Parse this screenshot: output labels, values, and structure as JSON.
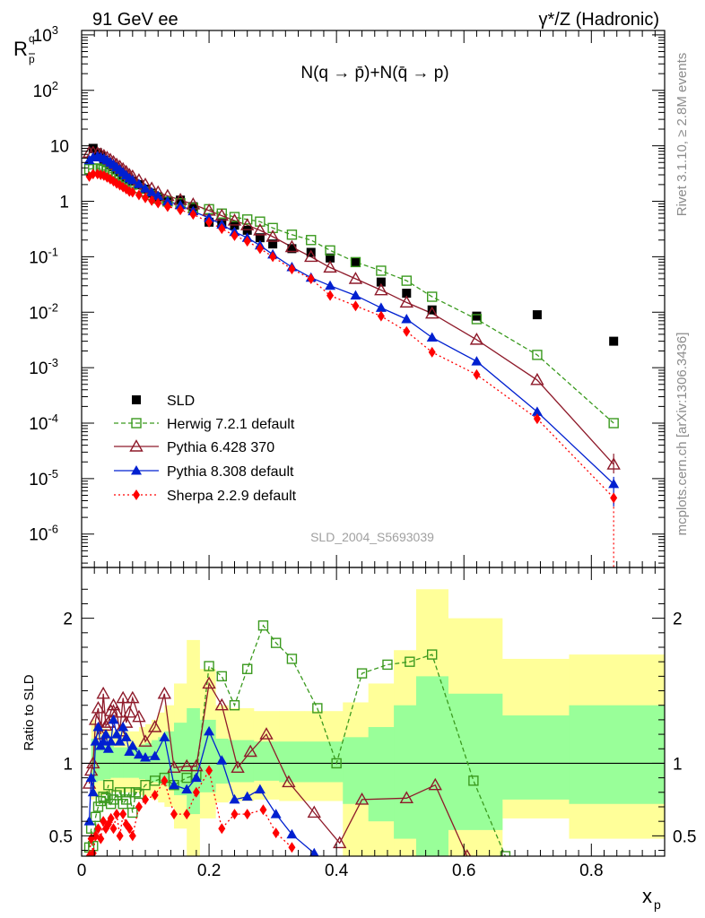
{
  "header": {
    "left": "91 GeV ee",
    "right": "γ*/Z (Hadronic)"
  },
  "side_text": {
    "rivet": "Rivet 3.1.10, ≥ 2.8M events",
    "mcplots": "mcplots.cern.ch [arXiv:1306.3436]"
  },
  "watermark": "SLD_2004_S5693039",
  "colors": {
    "SLD": "#000000",
    "Herwig": "#3b9a1f",
    "Pythia6": "#8e1a2a",
    "Pythia8": "#0020d0",
    "Sherpa": "#ff0000",
    "band_outer": "#ffff99",
    "band_inner": "#99ff99"
  },
  "chart_data": [
    {
      "type": "scatter",
      "title": "N(q → p̄)+N(q̄ → p)",
      "ylabel": "R_p^q",
      "yscale": "log",
      "xlim": [
        0,
        0.915
      ],
      "ylim": [
        2.5e-07,
        1200
      ],
      "y_ticks": [
        "10^3",
        "10^2",
        "10",
        "1",
        "10^-1",
        "10^-2",
        "10^-3",
        "10^-4",
        "10^-5",
        "10^-6"
      ],
      "x_ticks": [
        "0",
        "0.2",
        "0.4",
        "0.6",
        "0.8"
      ],
      "legend_position": "bottom-left",
      "series": [
        {
          "name": "SLD",
          "style": "marker",
          "x": [
            0.018,
            0.025,
            0.03,
            0.035,
            0.04,
            0.045,
            0.05,
            0.055,
            0.06,
            0.065,
            0.07,
            0.075,
            0.08,
            0.09,
            0.1,
            0.11,
            0.12,
            0.135,
            0.155,
            0.175,
            0.2,
            0.22,
            0.24,
            0.26,
            0.28,
            0.3,
            0.33,
            0.36,
            0.39,
            0.43,
            0.47,
            0.51,
            0.55,
            0.62,
            0.715,
            0.835
          ],
          "y": [
            9.0,
            7.5,
            6.5,
            5.5,
            5.0,
            4.5,
            4.2,
            3.8,
            3.4,
            3.0,
            2.7,
            2.5,
            2.3,
            2.0,
            1.65,
            1.4,
            1.2,
            1.0,
            1.05,
            0.8,
            0.42,
            0.4,
            0.37,
            0.3,
            0.22,
            0.17,
            0.14,
            0.12,
            0.095,
            0.08,
            0.035,
            0.022,
            0.011,
            0.0085,
            0.009,
            0.003
          ]
        },
        {
          "name": "Herwig 7.2.1 default",
          "style": "dashed-open-square",
          "x": [
            0.012,
            0.018,
            0.025,
            0.03,
            0.035,
            0.04,
            0.045,
            0.05,
            0.055,
            0.06,
            0.065,
            0.07,
            0.075,
            0.08,
            0.09,
            0.1,
            0.11,
            0.12,
            0.135,
            0.155,
            0.175,
            0.2,
            0.22,
            0.24,
            0.26,
            0.28,
            0.3,
            0.33,
            0.36,
            0.39,
            0.43,
            0.47,
            0.51,
            0.55,
            0.62,
            0.715,
            0.835
          ],
          "y": [
            3.8,
            3.9,
            3.9,
            3.8,
            3.7,
            3.5,
            3.3,
            3.1,
            2.9,
            2.7,
            2.5,
            2.3,
            2.15,
            2.0,
            1.72,
            1.5,
            1.3,
            1.12,
            0.99,
            0.92,
            0.76,
            0.72,
            0.6,
            0.52,
            0.47,
            0.43,
            0.33,
            0.25,
            0.2,
            0.13,
            0.08,
            0.056,
            0.037,
            0.019,
            0.0075,
            0.0017,
            0.0001
          ]
        },
        {
          "name": "Pythia 6.428 370",
          "style": "solid-open-triangle",
          "x": [
            0.012,
            0.018,
            0.025,
            0.03,
            0.035,
            0.04,
            0.045,
            0.05,
            0.055,
            0.06,
            0.065,
            0.07,
            0.075,
            0.08,
            0.09,
            0.1,
            0.11,
            0.12,
            0.135,
            0.155,
            0.175,
            0.2,
            0.22,
            0.24,
            0.26,
            0.28,
            0.3,
            0.33,
            0.36,
            0.39,
            0.43,
            0.47,
            0.51,
            0.55,
            0.62,
            0.715,
            0.835
          ],
          "y": [
            7.5,
            7.6,
            7.3,
            7.0,
            6.6,
            6.1,
            5.6,
            5.1,
            4.6,
            4.2,
            3.8,
            3.4,
            3.0,
            2.8,
            2.4,
            2.0,
            1.7,
            1.45,
            1.25,
            1.06,
            0.88,
            0.68,
            0.55,
            0.45,
            0.37,
            0.3,
            0.23,
            0.15,
            0.1,
            0.064,
            0.04,
            0.025,
            0.015,
            0.0095,
            0.0032,
            0.0006,
            1.8e-05
          ]
        },
        {
          "name": "Pythia 8.308 default",
          "style": "solid-filled-triangle",
          "x": [
            0.012,
            0.018,
            0.025,
            0.03,
            0.035,
            0.04,
            0.045,
            0.05,
            0.055,
            0.06,
            0.065,
            0.07,
            0.075,
            0.08,
            0.09,
            0.1,
            0.11,
            0.12,
            0.135,
            0.155,
            0.175,
            0.2,
            0.22,
            0.24,
            0.26,
            0.28,
            0.3,
            0.33,
            0.36,
            0.39,
            0.43,
            0.47,
            0.51,
            0.55,
            0.62,
            0.715,
            0.835
          ],
          "y": [
            5.5,
            6.2,
            6.5,
            6.2,
            5.9,
            5.5,
            5.0,
            4.6,
            4.1,
            3.7,
            3.3,
            2.95,
            2.6,
            2.4,
            2.05,
            1.7,
            1.45,
            1.25,
            1.0,
            0.85,
            0.66,
            0.5,
            0.38,
            0.28,
            0.22,
            0.16,
            0.11,
            0.065,
            0.042,
            0.03,
            0.02,
            0.012,
            0.0075,
            0.0035,
            0.0013,
            0.00016,
            8e-06
          ]
        },
        {
          "name": "Sherpa 2.2.9 default",
          "style": "dotted-filled-diamond",
          "x": [
            0.012,
            0.018,
            0.025,
            0.03,
            0.035,
            0.04,
            0.045,
            0.05,
            0.055,
            0.06,
            0.065,
            0.07,
            0.075,
            0.08,
            0.09,
            0.1,
            0.11,
            0.12,
            0.135,
            0.155,
            0.175,
            0.2,
            0.22,
            0.24,
            0.26,
            0.28,
            0.3,
            0.33,
            0.36,
            0.39,
            0.43,
            0.47,
            0.51,
            0.55,
            0.62,
            0.715,
            0.835
          ],
          "y": [
            2.8,
            3.1,
            3.1,
            3.0,
            2.9,
            2.7,
            2.5,
            2.3,
            2.1,
            1.95,
            1.8,
            1.65,
            1.5,
            1.45,
            1.3,
            1.15,
            1.03,
            0.93,
            0.8,
            0.7,
            0.58,
            0.42,
            0.32,
            0.24,
            0.19,
            0.14,
            0.1,
            0.06,
            0.04,
            0.02,
            0.013,
            0.0085,
            0.0045,
            0.0019,
            0.00075,
            0.00012,
            4.5e-06
          ]
        }
      ]
    },
    {
      "type": "line",
      "ylabel": "Ratio to SLD",
      "xlabel": "x_p",
      "xlim": [
        0,
        0.915
      ],
      "ylim": [
        0.36,
        2.35
      ],
      "y_ticks": [
        0.5,
        1,
        2
      ],
      "x_ticks": [
        0,
        0.2,
        0.4,
        0.6,
        0.8
      ],
      "bands": {
        "edges": [
          0.015,
          0.02,
          0.025,
          0.03,
          0.035,
          0.04,
          0.045,
          0.05,
          0.055,
          0.06,
          0.065,
          0.07,
          0.075,
          0.08,
          0.09,
          0.1,
          0.11,
          0.12,
          0.13,
          0.145,
          0.165,
          0.185,
          0.21,
          0.23,
          0.25,
          0.27,
          0.29,
          0.31,
          0.35,
          0.38,
          0.41,
          0.45,
          0.49,
          0.525,
          0.575,
          0.66,
          0.765,
          0.915
        ],
        "outer_lo": [
          0.75,
          0.77,
          0.78,
          0.78,
          0.79,
          0.79,
          0.8,
          0.8,
          0.8,
          0.8,
          0.8,
          0.8,
          0.8,
          0.8,
          0.78,
          0.77,
          0.75,
          0.73,
          0.7,
          0.55,
          0.36,
          0.62,
          0.73,
          0.74,
          0.74,
          0.75,
          0.75,
          0.74,
          0.74,
          0.74,
          0.36,
          0.36,
          0.36,
          0.36,
          0.36,
          0.62,
          0.48
        ],
        "outer_hi": [
          1.3,
          1.25,
          1.25,
          1.24,
          1.24,
          1.23,
          1.23,
          1.22,
          1.22,
          1.22,
          1.22,
          1.22,
          1.22,
          1.22,
          1.25,
          1.27,
          1.3,
          1.35,
          1.4,
          1.55,
          1.85,
          1.65,
          1.4,
          1.38,
          1.38,
          1.36,
          1.36,
          1.36,
          1.36,
          1.36,
          1.42,
          1.55,
          1.78,
          2.2,
          2.0,
          1.72,
          1.75
        ],
        "inner_lo": [
          0.85,
          0.87,
          0.88,
          0.88,
          0.89,
          0.89,
          0.9,
          0.9,
          0.9,
          0.9,
          0.9,
          0.9,
          0.9,
          0.9,
          0.89,
          0.88,
          0.87,
          0.86,
          0.84,
          0.78,
          0.65,
          0.8,
          0.86,
          0.87,
          0.87,
          0.88,
          0.88,
          0.87,
          0.87,
          0.87,
          0.72,
          0.6,
          0.48,
          0.36,
          0.54,
          0.75,
          0.72
        ],
        "inner_hi": [
          1.17,
          1.14,
          1.13,
          1.13,
          1.12,
          1.12,
          1.12,
          1.11,
          1.11,
          1.11,
          1.11,
          1.11,
          1.11,
          1.11,
          1.13,
          1.14,
          1.16,
          1.18,
          1.22,
          1.28,
          1.38,
          1.3,
          1.17,
          1.16,
          1.16,
          1.15,
          1.15,
          1.15,
          1.15,
          1.15,
          1.18,
          1.25,
          1.4,
          1.6,
          1.48,
          1.33,
          1.4
        ]
      },
      "series": [
        {
          "name": "Herwig 7.2.1 default",
          "style": "dashed-open-square",
          "x": [
            0.012,
            0.015,
            0.018,
            0.022,
            0.026,
            0.03,
            0.034,
            0.038,
            0.042,
            0.046,
            0.05,
            0.055,
            0.06,
            0.065,
            0.07,
            0.075,
            0.08,
            0.085,
            0.09,
            0.1,
            0.115,
            0.13,
            0.145,
            0.165,
            0.18,
            0.2,
            0.22,
            0.24,
            0.26,
            0.285,
            0.305,
            0.33,
            0.37,
            0.4,
            0.44,
            0.48,
            0.515,
            0.55,
            0.615,
            0.665
          ],
          "y": [
            0.42,
            0.55,
            0.43,
            0.63,
            0.7,
            0.74,
            0.77,
            0.76,
            0.85,
            0.72,
            0.75,
            0.78,
            0.8,
            0.72,
            0.75,
            0.8,
            0.66,
            0.8,
            0.79,
            0.85,
            0.88,
            0.9,
            0.85,
            0.9,
            0.92,
            1.67,
            1.6,
            1.4,
            1.65,
            1.95,
            1.83,
            1.72,
            1.38,
            1.0,
            1.62,
            1.68,
            1.7,
            1.75,
            0.88,
            0.36
          ]
        },
        {
          "name": "Pythia 6.428 370",
          "style": "solid-open-triangle",
          "x": [
            0.012,
            0.015,
            0.018,
            0.022,
            0.026,
            0.03,
            0.034,
            0.038,
            0.042,
            0.046,
            0.05,
            0.055,
            0.06,
            0.065,
            0.07,
            0.075,
            0.08,
            0.09,
            0.1,
            0.115,
            0.13,
            0.145,
            0.165,
            0.18,
            0.2,
            0.22,
            0.245,
            0.265,
            0.29,
            0.325,
            0.365,
            0.405,
            0.44,
            0.51,
            0.555,
            0.605
          ],
          "y": [
            0.86,
            0.95,
            1.0,
            1.3,
            1.38,
            1.2,
            1.48,
            1.26,
            1.28,
            1.36,
            1.4,
            1.35,
            1.22,
            1.45,
            1.28,
            1.35,
            1.45,
            1.32,
            1.15,
            1.25,
            1.48,
            0.97,
            0.98,
            0.98,
            1.55,
            1.4,
            0.97,
            1.08,
            1.2,
            0.87,
            0.66,
            0.45,
            0.75,
            0.76,
            0.85,
            0.36
          ]
        },
        {
          "name": "Pythia 8.308 default",
          "style": "solid-filled-triangle",
          "x": [
            0.012,
            0.015,
            0.018,
            0.022,
            0.026,
            0.03,
            0.034,
            0.038,
            0.042,
            0.046,
            0.05,
            0.055,
            0.06,
            0.065,
            0.07,
            0.075,
            0.08,
            0.09,
            0.1,
            0.115,
            0.13,
            0.145,
            0.165,
            0.18,
            0.2,
            0.22,
            0.24,
            0.26,
            0.28,
            0.305,
            0.33,
            0.365
          ],
          "y": [
            0.6,
            0.9,
            0.8,
            1.15,
            1.25,
            1.12,
            1.15,
            1.2,
            1.1,
            1.15,
            1.3,
            1.2,
            1.15,
            1.25,
            1.18,
            1.08,
            1.12,
            1.06,
            1.04,
            1.05,
            1.18,
            0.85,
            0.82,
            0.9,
            1.22,
            1.02,
            0.75,
            0.77,
            0.82,
            0.65,
            0.51,
            0.38
          ]
        },
        {
          "name": "Sherpa 2.2.9 default",
          "style": "dotted-filled-diamond",
          "x": [
            0.012,
            0.015,
            0.018,
            0.022,
            0.026,
            0.03,
            0.034,
            0.038,
            0.042,
            0.046,
            0.05,
            0.055,
            0.06,
            0.065,
            0.07,
            0.075,
            0.08,
            0.09,
            0.1,
            0.115,
            0.13,
            0.145,
            0.165,
            0.18,
            0.2,
            0.22,
            0.24,
            0.26,
            0.285,
            0.305,
            0.33
          ],
          "y": [
            0.36,
            0.48,
            0.38,
            0.5,
            0.55,
            0.48,
            0.6,
            0.55,
            0.58,
            0.62,
            0.55,
            0.65,
            0.5,
            0.65,
            0.58,
            0.55,
            0.5,
            0.7,
            0.75,
            0.78,
            0.88,
            0.65,
            0.65,
            0.8,
            0.95,
            0.55,
            0.65,
            0.65,
            0.68,
            0.52,
            0.42
          ]
        }
      ]
    }
  ]
}
